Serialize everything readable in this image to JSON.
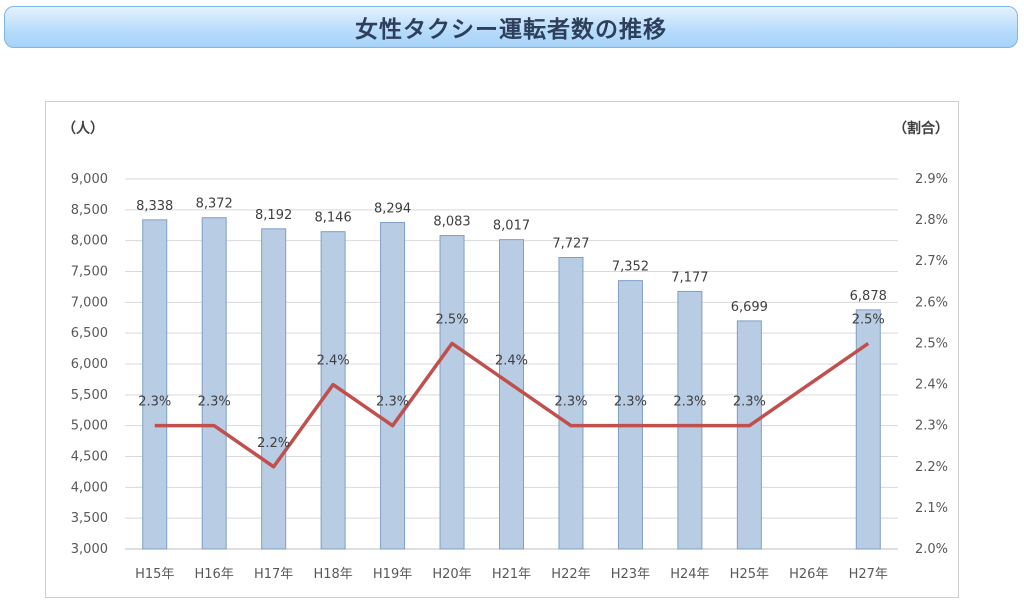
{
  "banner": {
    "title": "女性タクシー運転者数の推移"
  },
  "chart_data": {
    "type": "bar",
    "title": "女性タクシー運転者数の推移",
    "ylabel": "（人）",
    "y2label": "（割合）",
    "categories": [
      "H15年",
      "H16年",
      "H17年",
      "H18年",
      "H19年",
      "H20年",
      "H21年",
      "H22年",
      "H23年",
      "H24年",
      "H25年",
      "H26年",
      "H27年"
    ],
    "ylim": [
      3000,
      9000
    ],
    "y2lim": [
      2.0,
      2.9
    ],
    "y_ticks": [
      "3,000",
      "3,500",
      "4,000",
      "4,500",
      "5,000",
      "5,500",
      "6,000",
      "6,500",
      "7,000",
      "7,500",
      "8,000",
      "8,500",
      "9,000"
    ],
    "y2_ticks": [
      "2.0%",
      "2.1%",
      "2.2%",
      "2.3%",
      "2.4%",
      "2.5%",
      "2.6%",
      "2.7%",
      "2.8%",
      "2.9%"
    ],
    "grid": true,
    "series": [
      {
        "type": "bar",
        "values": [
          8338,
          8372,
          8192,
          8146,
          8294,
          8083,
          8017,
          7727,
          7352,
          7177,
          6699,
          null,
          6878
        ],
        "labels": [
          "8,338",
          "8,372",
          "8,192",
          "8,146",
          "8,294",
          "8,083",
          "8,017",
          "7,727",
          "7,352",
          "7,177",
          "6,699",
          "",
          "6,878"
        ],
        "color": "#b8cce4"
      },
      {
        "type": "line",
        "axis": "right",
        "values": [
          2.3,
          2.3,
          2.2,
          2.4,
          2.3,
          2.5,
          2.4,
          2.3,
          2.3,
          2.3,
          2.3,
          null,
          2.5
        ],
        "labels": [
          "2.3%",
          "2.3%",
          "2.2%",
          "2.4%",
          "2.3%",
          "2.5%",
          "2.4%",
          "2.3%",
          "2.3%",
          "2.3%",
          "2.3%",
          "",
          "2.5%"
        ],
        "color": "#c0504d"
      }
    ]
  }
}
